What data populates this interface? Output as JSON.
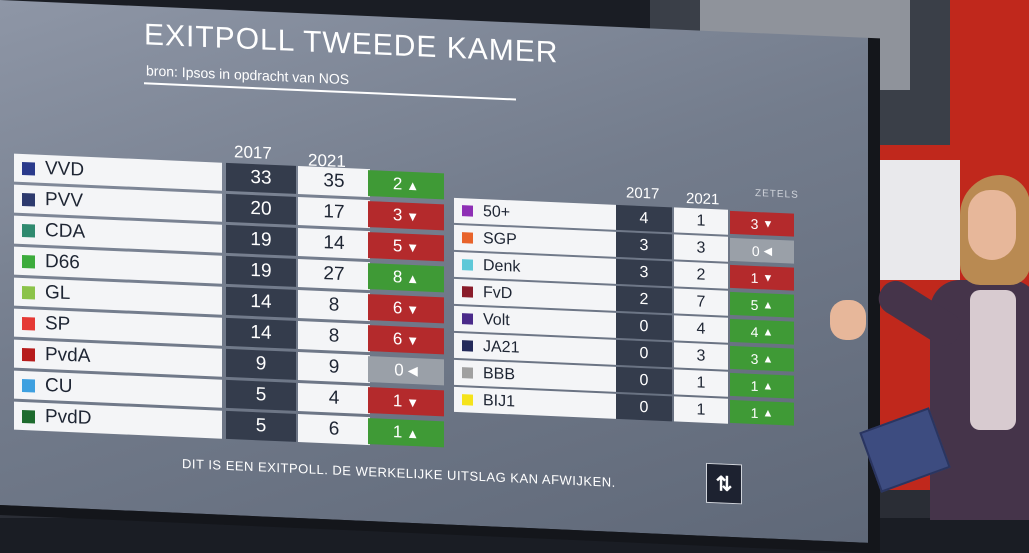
{
  "header": {
    "title": "EXITPOLL TWEEDE KAMER",
    "subtitle": "bron: Ipsos in opdracht van NOS"
  },
  "left_table": {
    "col_2017": "2017",
    "col_2021": "2021",
    "rows": [
      {
        "party": "VVD",
        "color": "#2a3a8c",
        "v2017": "33",
        "v2021": "35",
        "diff": "2",
        "dir": "up"
      },
      {
        "party": "PVV",
        "color": "#2d3a6e",
        "v2017": "20",
        "v2021": "17",
        "diff": "3",
        "dir": "down"
      },
      {
        "party": "CDA",
        "color": "#2f8a6f",
        "v2017": "19",
        "v2021": "14",
        "diff": "5",
        "dir": "down"
      },
      {
        "party": "D66",
        "color": "#3cab3c",
        "v2017": "19",
        "v2021": "27",
        "diff": "8",
        "dir": "up"
      },
      {
        "party": "GL",
        "color": "#8bc34a",
        "v2017": "14",
        "v2021": "8",
        "diff": "6",
        "dir": "down"
      },
      {
        "party": "SP",
        "color": "#e53935",
        "v2017": "14",
        "v2021": "8",
        "diff": "6",
        "dir": "down"
      },
      {
        "party": "PvdA",
        "color": "#b71c1c",
        "v2017": "9",
        "v2021": "9",
        "diff": "0",
        "dir": "same"
      },
      {
        "party": "CU",
        "color": "#3ea0e0",
        "v2017": "5",
        "v2021": "4",
        "diff": "1",
        "dir": "down"
      },
      {
        "party": "PvdD",
        "color": "#1e6b2e",
        "v2017": "5",
        "v2021": "6",
        "diff": "1",
        "dir": "up"
      }
    ]
  },
  "right_table": {
    "col_2017": "2017",
    "col_2021": "2021",
    "col_zetels": "ZETELS",
    "rows": [
      {
        "party": "50+",
        "color": "#8e2fb5",
        "v2017": "4",
        "v2021": "1",
        "diff": "3",
        "dir": "down"
      },
      {
        "party": "SGP",
        "color": "#e8632b",
        "v2017": "3",
        "v2021": "3",
        "diff": "0",
        "dir": "same"
      },
      {
        "party": "Denk",
        "color": "#5ec8d8",
        "v2017": "3",
        "v2021": "2",
        "diff": "1",
        "dir": "down"
      },
      {
        "party": "FvD",
        "color": "#8a1c2a",
        "v2017": "2",
        "v2021": "7",
        "diff": "5",
        "dir": "up"
      },
      {
        "party": "Volt",
        "color": "#4a2a8a",
        "v2017": "0",
        "v2021": "4",
        "diff": "4",
        "dir": "up"
      },
      {
        "party": "JA21",
        "color": "#232a5a",
        "v2017": "0",
        "v2021": "3",
        "diff": "3",
        "dir": "up"
      },
      {
        "party": "BBB",
        "color": "#a0a0a0",
        "v2017": "0",
        "v2021": "1",
        "diff": "1",
        "dir": "up"
      },
      {
        "party": "BIJ1",
        "color": "#f5e31b",
        "v2017": "0",
        "v2021": "1",
        "diff": "1",
        "dir": "up"
      }
    ]
  },
  "footer": {
    "disclaimer": "DIT IS EEN EXITPOLL. DE WERKELIJKE UITSLAG KAN AFWIJKEN.",
    "toggle_icon": "swap-vertical-icon"
  },
  "arrows": {
    "up": "▲",
    "down": "▼",
    "same": "◀"
  },
  "colors": {
    "up": "#3f9a36",
    "down": "#b42a2c",
    "same": "#9aa0a8"
  }
}
